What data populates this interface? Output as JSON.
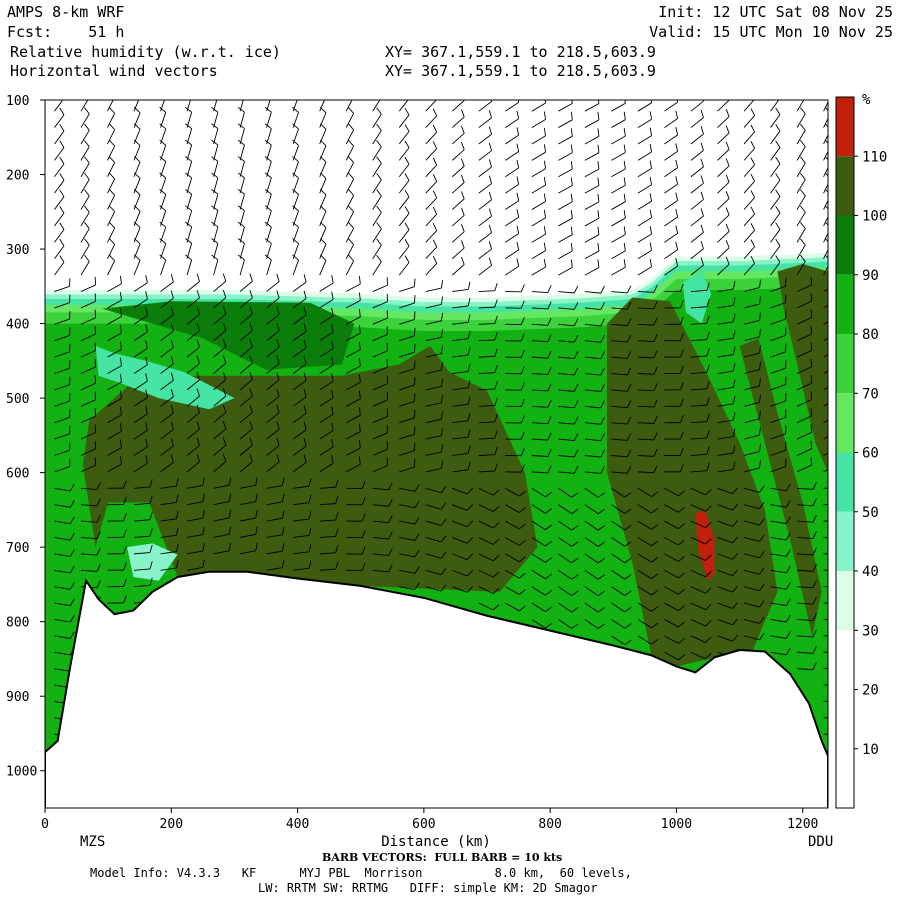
{
  "header": {
    "model": "AMPS 8-km WRF",
    "forecast": "Fcst:    51 h",
    "field1": "Relative humidity (w.r.t. ice)",
    "field2": "Horizontal wind vectors",
    "init": "Init: 12 UTC Sat 08 Nov 25",
    "valid": "Valid: 15 UTC Mon 10 Nov 25",
    "xy1": "XY= 367.1,559.1 to 218.5,603.9",
    "xy2": "XY= 367.1,559.1 to 218.5,603.9"
  },
  "footer": {
    "barb_note": "BARB VECTORS:  FULL BARB = 10 kts",
    "model_info": "Model Info: V4.3.3   KF      MYJ PBL  Morrison          8.0 km,  60 levels,",
    "physics": "LW: RRTM SW: RRTMG   DIFF: simple KM: 2D Smagor"
  },
  "colors": {
    "c0": "#ffffff",
    "c10": "#ffffff",
    "c20": "#ffffff",
    "c30": "#ddfde8",
    "c40": "#88f4ca",
    "c50": "#45e4a4",
    "c60": "#64e864",
    "c70": "#3cd23c",
    "c80": "#12b212",
    "c90": "#0a7d0a",
    "c100": "#3d5c0f",
    "c110": "#c21f0c",
    "terrain": "#ffffff"
  },
  "chart_data": {
    "type": "heatmap",
    "title": "Relative humidity (w.r.t. ice)",
    "xlabel": "Distance (km)",
    "ylabel": "",
    "xlim": [
      0,
      1240
    ],
    "ylim": [
      1050,
      100
    ],
    "x_ticks": [
      0,
      200,
      400,
      600,
      800,
      1000,
      1200
    ],
    "x_tick_labels": [
      "0",
      "200",
      "400",
      "600",
      "800",
      "1000",
      "1200"
    ],
    "y_ticks": [
      100,
      200,
      300,
      400,
      500,
      600,
      700,
      800,
      900,
      1000
    ],
    "y_tick_labels": [
      "100",
      "200",
      "300",
      "400",
      "500",
      "600",
      "700",
      "800",
      "900",
      "1000"
    ],
    "endpoint_left": "MZS",
    "endpoint_right": "DDU",
    "colorbar": {
      "unit": "%",
      "levels": [
        10,
        20,
        30,
        40,
        50,
        60,
        70,
        80,
        90,
        100,
        110
      ],
      "labels": [
        "10",
        "20",
        "30",
        "40",
        "50",
        "60",
        "70",
        "80",
        "90",
        "100",
        "110"
      ]
    },
    "terrain_surface": [
      {
        "x": 0,
        "p": 975
      },
      {
        "x": 20,
        "p": 960
      },
      {
        "x": 40,
        "p": 860
      },
      {
        "x": 65,
        "p": 745
      },
      {
        "x": 85,
        "p": 770
      },
      {
        "x": 110,
        "p": 790
      },
      {
        "x": 140,
        "p": 785
      },
      {
        "x": 170,
        "p": 760
      },
      {
        "x": 210,
        "p": 740
      },
      {
        "x": 260,
        "p": 733
      },
      {
        "x": 320,
        "p": 733
      },
      {
        "x": 400,
        "p": 742
      },
      {
        "x": 500,
        "p": 752
      },
      {
        "x": 600,
        "p": 768
      },
      {
        "x": 700,
        "p": 792
      },
      {
        "x": 800,
        "p": 812
      },
      {
        "x": 900,
        "p": 832
      },
      {
        "x": 960,
        "p": 845
      },
      {
        "x": 1000,
        "p": 860
      },
      {
        "x": 1030,
        "p": 868
      },
      {
        "x": 1060,
        "p": 848
      },
      {
        "x": 1100,
        "p": 838
      },
      {
        "x": 1140,
        "p": 840
      },
      {
        "x": 1180,
        "p": 870
      },
      {
        "x": 1210,
        "p": 910
      },
      {
        "x": 1230,
        "p": 960
      },
      {
        "x": 1240,
        "p": 980
      }
    ],
    "moist_top": [
      {
        "x": 0,
        "p": 355
      },
      {
        "x": 300,
        "p": 355
      },
      {
        "x": 500,
        "p": 360
      },
      {
        "x": 600,
        "p": 365
      },
      {
        "x": 700,
        "p": 365
      },
      {
        "x": 850,
        "p": 360
      },
      {
        "x": 930,
        "p": 355
      },
      {
        "x": 960,
        "p": 340
      },
      {
        "x": 1000,
        "p": 310
      },
      {
        "x": 1100,
        "p": 310
      },
      {
        "x": 1240,
        "p": 305
      }
    ],
    "humid_regions": [
      {
        "level": 90,
        "poly": [
          [
            90,
            380
          ],
          [
            200,
            370
          ],
          [
            420,
            372
          ],
          [
            490,
            400
          ],
          [
            470,
            455
          ],
          [
            350,
            462
          ],
          [
            250,
            420
          ],
          [
            150,
            395
          ]
        ]
      },
      {
        "level": 100,
        "poly": [
          [
            60,
            590
          ],
          [
            70,
            530
          ],
          [
            110,
            500
          ],
          [
            150,
            470
          ],
          [
            230,
            470
          ],
          [
            350,
            470
          ],
          [
            470,
            470
          ],
          [
            560,
            455
          ],
          [
            610,
            430
          ],
          [
            640,
            465
          ],
          [
            700,
            490
          ],
          [
            760,
            600
          ],
          [
            780,
            700
          ],
          [
            720,
            760
          ],
          [
            500,
            752
          ],
          [
            300,
            734
          ],
          [
            210,
            740
          ],
          [
            165,
            640
          ],
          [
            100,
            640
          ],
          [
            80,
            700
          ]
        ]
      },
      {
        "level": 100,
        "poly": [
          [
            890,
            400
          ],
          [
            930,
            365
          ],
          [
            990,
            370
          ],
          [
            1050,
            470
          ],
          [
            1100,
            560
          ],
          [
            1140,
            650
          ],
          [
            1160,
            760
          ],
          [
            1120,
            840
          ],
          [
            1060,
            848
          ],
          [
            1000,
            860
          ],
          [
            960,
            845
          ],
          [
            930,
            720
          ],
          [
            890,
            600
          ]
        ]
      },
      {
        "level": 100,
        "poly": [
          [
            1160,
            330
          ],
          [
            1200,
            320
          ],
          [
            1240,
            330
          ],
          [
            1240,
            600
          ],
          [
            1220,
            560
          ],
          [
            1190,
            450
          ],
          [
            1170,
            380
          ]
        ]
      },
      {
        "level": 100,
        "poly": [
          [
            1100,
            430
          ],
          [
            1130,
            420
          ],
          [
            1160,
            520
          ],
          [
            1200,
            640
          ],
          [
            1230,
            760
          ],
          [
            1215,
            820
          ],
          [
            1180,
            690
          ],
          [
            1140,
            560
          ]
        ]
      },
      {
        "level": 110,
        "poly": [
          [
            1030,
            655
          ],
          [
            1045,
            650
          ],
          [
            1060,
            690
          ],
          [
            1060,
            735
          ],
          [
            1050,
            745
          ],
          [
            1035,
            705
          ]
        ]
      },
      {
        "level": 50,
        "poly": [
          [
            80,
            430
          ],
          [
            110,
            440
          ],
          [
            160,
            450
          ],
          [
            220,
            465
          ],
          [
            300,
            500
          ],
          [
            260,
            515
          ],
          [
            180,
            500
          ],
          [
            120,
            480
          ],
          [
            85,
            470
          ]
        ]
      },
      {
        "level": 40,
        "poly": [
          [
            130,
            700
          ],
          [
            170,
            695
          ],
          [
            210,
            710
          ],
          [
            180,
            745
          ],
          [
            140,
            740
          ]
        ]
      },
      {
        "level": 50,
        "poly": [
          [
            1010,
            345
          ],
          [
            1040,
            330
          ],
          [
            1055,
            360
          ],
          [
            1040,
            400
          ],
          [
            1015,
            385
          ]
        ]
      }
    ]
  }
}
